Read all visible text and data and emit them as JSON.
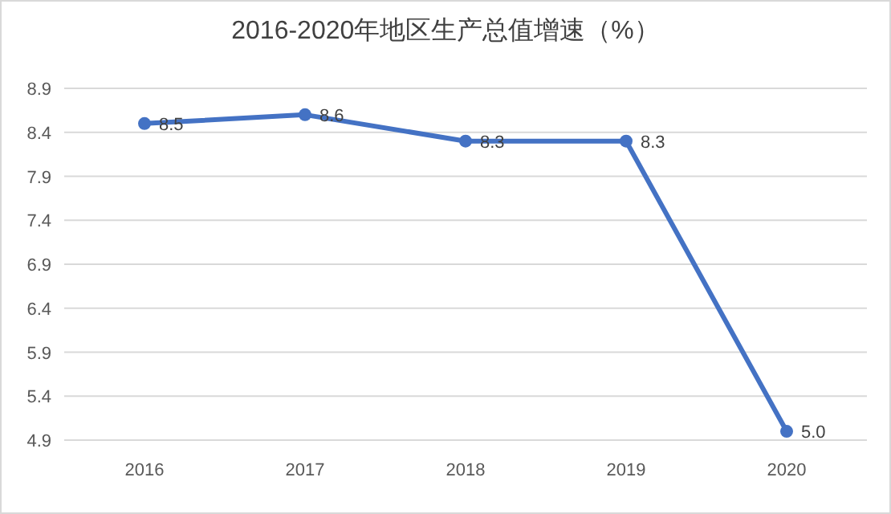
{
  "chart_data": {
    "type": "line",
    "title": "2016-2020年地区生产总值增速（%）",
    "categories": [
      "2016",
      "2017",
      "2018",
      "2019",
      "2020"
    ],
    "series": [
      {
        "color": "#4472c4",
        "values": [
          8.5,
          8.6,
          8.3,
          8.3,
          5.0
        ],
        "value_labels": [
          "8.5",
          "8.6",
          "8.3",
          "8.3",
          "5.0"
        ]
      }
    ],
    "ylim": [
      4.9,
      8.9
    ],
    "yticks": [
      4.9,
      5.4,
      5.9,
      6.4,
      6.9,
      7.4,
      7.9,
      8.4,
      8.9
    ],
    "grid": "y",
    "marker": "circle",
    "line_style": "solid"
  }
}
